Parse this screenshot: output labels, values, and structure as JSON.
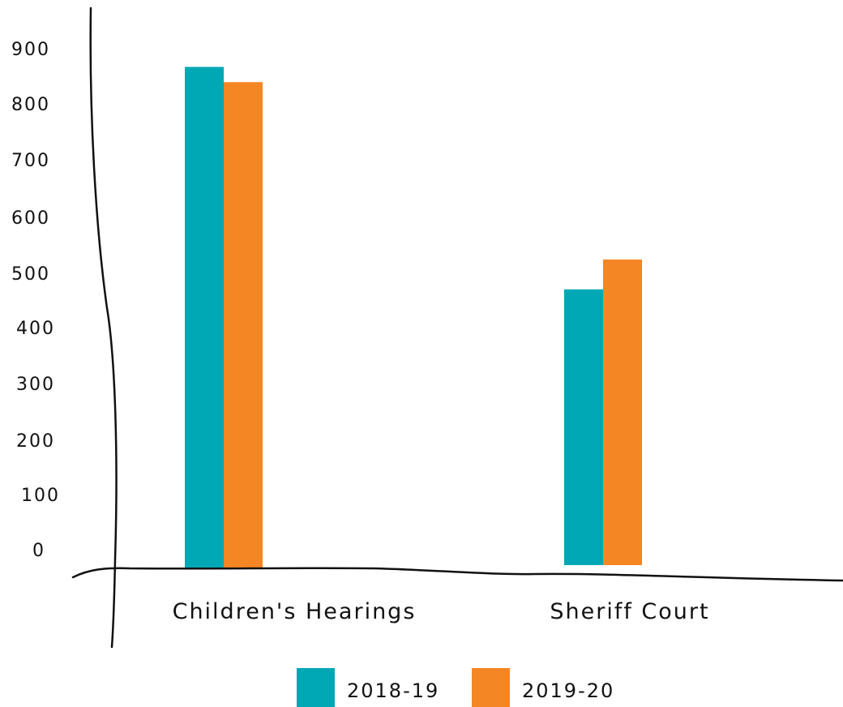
{
  "colors": {
    "series_2018_19": "#00a8b5",
    "series_2019_20": "#f58624"
  },
  "chart_data": {
    "type": "bar",
    "categories": [
      "Children's Hearings",
      "Sheriff Court"
    ],
    "series": [
      {
        "name": "2018-19",
        "values": [
          855,
          475
        ]
      },
      {
        "name": "2019-20",
        "values": [
          829,
          526
        ]
      }
    ],
    "ylim": [
      0,
      900
    ],
    "yticks": [
      "0",
      "100",
      "200",
      "300",
      "400",
      "500",
      "600",
      "700",
      "800",
      "900"
    ],
    "grid": false,
    "legend_position": "bottom-center",
    "title": "",
    "xlabel": "",
    "ylabel": ""
  }
}
